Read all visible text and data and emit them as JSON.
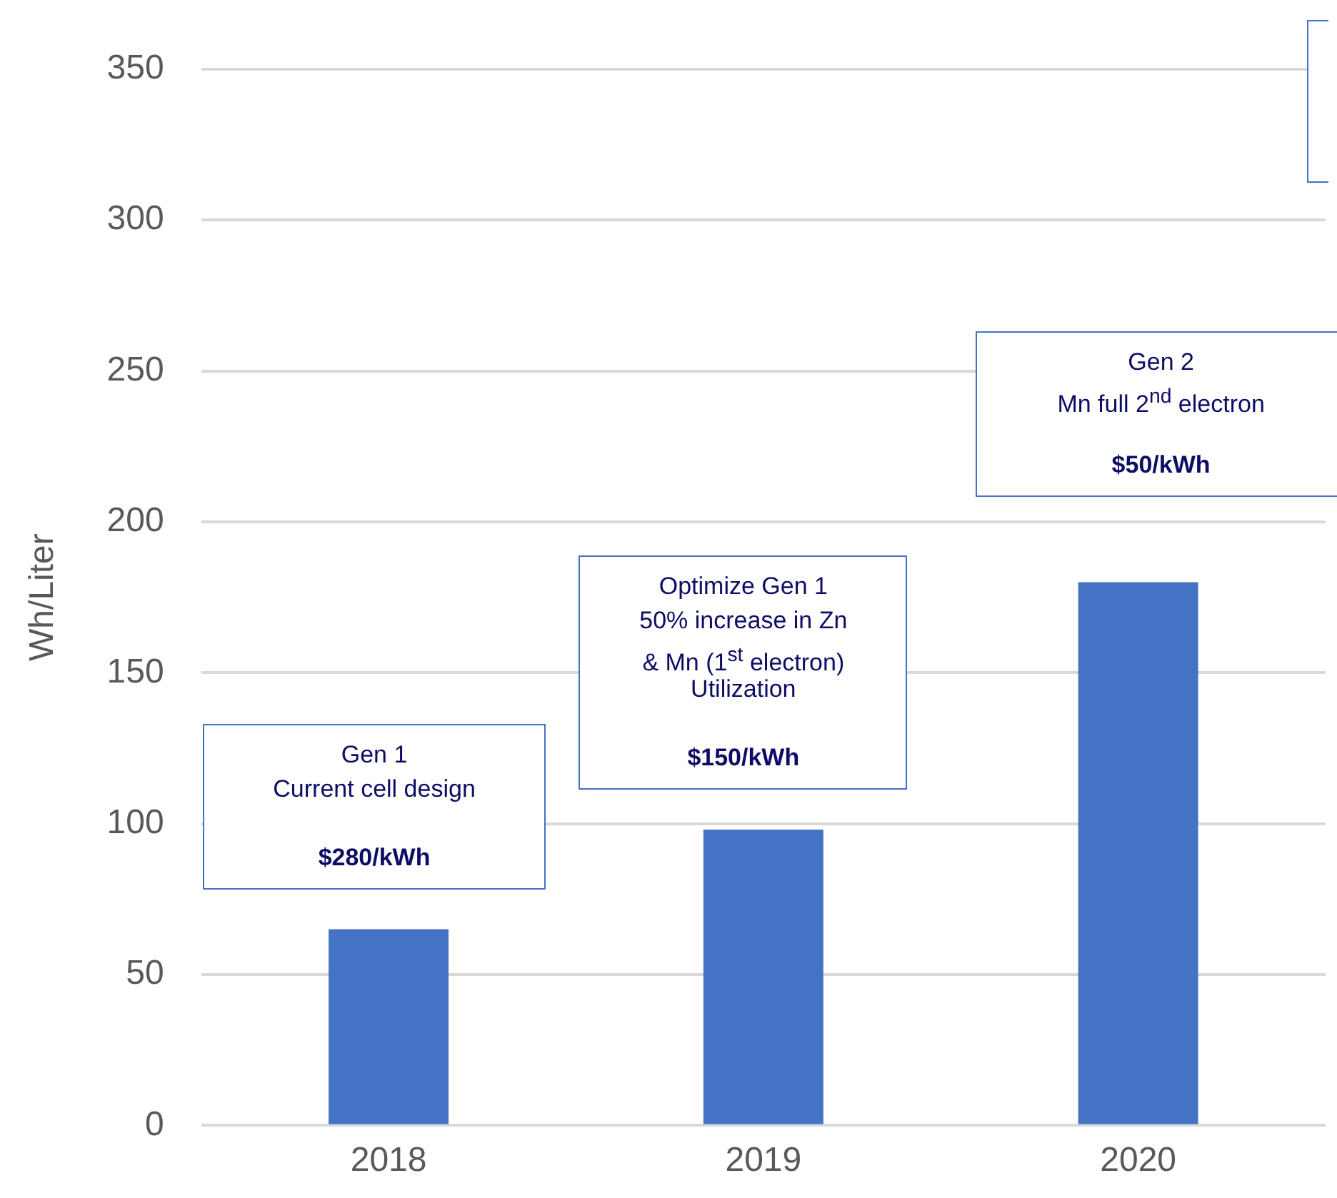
{
  "chart_data": {
    "type": "bar",
    "ylabel": "Wh/Liter",
    "categories": [
      "2018",
      "2019",
      "2020"
    ],
    "values": [
      65,
      98,
      180
    ],
    "color": "#4472c4",
    "ylim": [
      0,
      350
    ],
    "yticks": [
      0,
      50,
      100,
      150,
      200,
      250,
      300,
      350
    ],
    "grid": "y",
    "annotations": [
      "Gen 1",
      "Current cell design",
      "$280/kWh",
      "Optimize Gen 1",
      "50% increase in Zn",
      "& Mn (1$^{st}$ electron)",
      "Utilization",
      "$150/kWh",
      "Gen 2",
      "Mn full 2$^{nd}$ electron",
      "$50/kWh"
    ]
  }
}
